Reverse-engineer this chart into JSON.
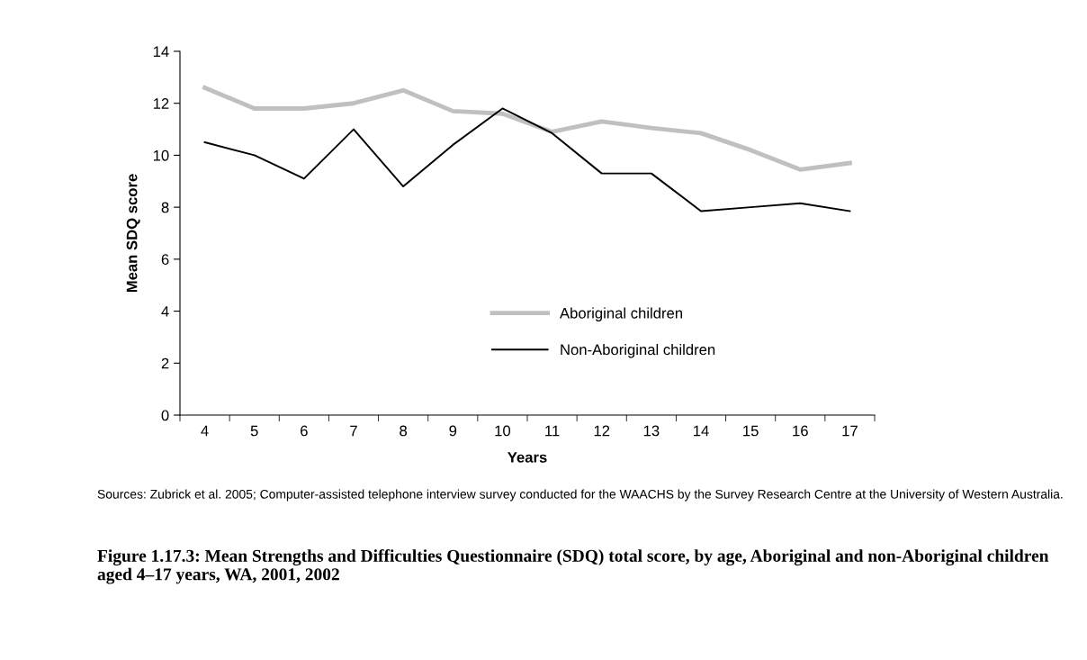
{
  "chart_data": {
    "type": "line",
    "title": "Figure 1.17.3: Mean Strengths and Difficulties Questionnaire (SDQ) total score, by age, Aboriginal and non-Aboriginal children aged 4–17 years, WA, 2001, 2002",
    "xlabel": "Years",
    "ylabel": "Mean SDQ score",
    "categories": [
      "4",
      "5",
      "6",
      "7",
      "8",
      "9",
      "10",
      "11",
      "12",
      "13",
      "14",
      "15",
      "16",
      "17"
    ],
    "series": [
      {
        "name": "Aboriginal children",
        "color": "#c0c0c0",
        "values": [
          12.6,
          11.8,
          11.8,
          12.0,
          12.5,
          11.7,
          11.6,
          10.9,
          11.3,
          11.05,
          10.85,
          10.2,
          9.45,
          9.7
        ]
      },
      {
        "name": "Non-Aboriginal children",
        "color": "#000000",
        "values": [
          10.5,
          10.0,
          9.1,
          11.0,
          8.8,
          10.4,
          11.8,
          10.85,
          9.3,
          9.3,
          7.85,
          8.0,
          8.15,
          7.85
        ]
      }
    ],
    "ylim": [
      0,
      14
    ],
    "yticks": [
      0,
      2,
      4,
      6,
      8,
      10,
      12,
      14
    ],
    "grid": false,
    "legend": "bottom",
    "marker": "none",
    "line_style": "solid",
    "annotations": [
      "Sources: Zubrick et al. 2005; Computer-assisted telephone interview survey conducted for the WAACHS by the Survey Research Centre at the University of Western Australia."
    ]
  }
}
